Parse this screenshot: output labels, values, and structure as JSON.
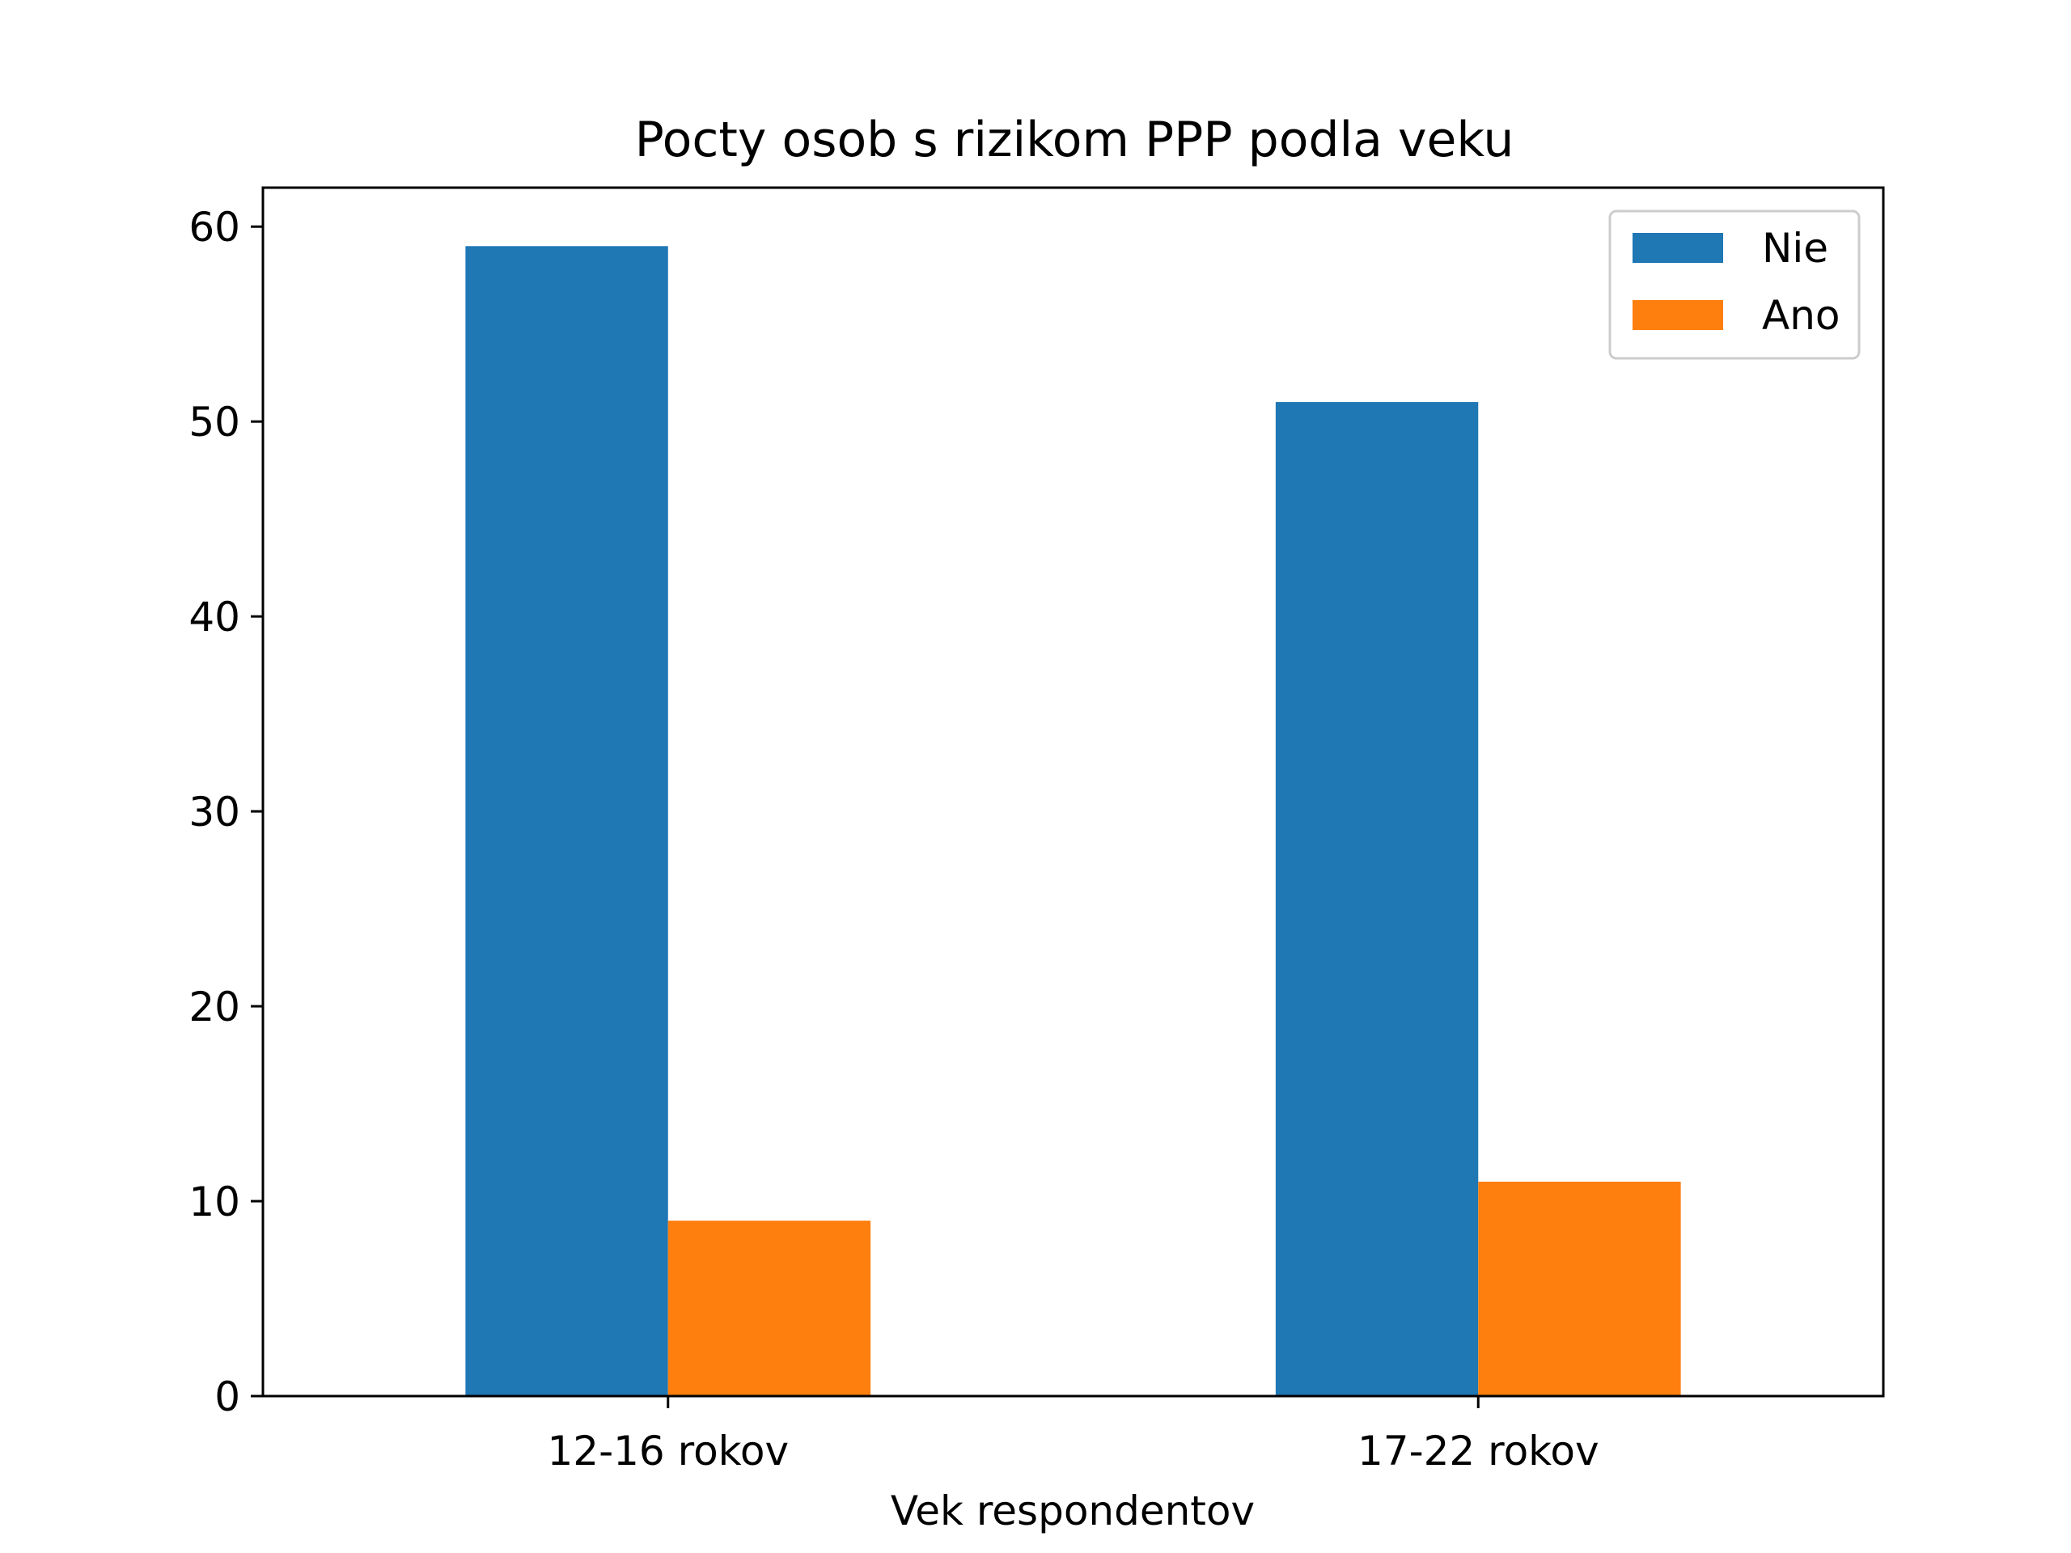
{
  "chart_data": {
    "type": "bar",
    "title": "Pocty osob s rizikom PPP podla veku",
    "xlabel": "Vek respondentov",
    "ylabel": "",
    "categories": [
      "12-16 rokov",
      "17-22 rokov"
    ],
    "series": [
      {
        "name": "Nie",
        "values": [
          59,
          51
        ],
        "color": "#1f77b4"
      },
      {
        "name": "Ano",
        "values": [
          9,
          11
        ],
        "color": "#ff7f0e"
      }
    ],
    "ylim": [
      0,
      62
    ],
    "yticks": [
      0,
      10,
      20,
      30,
      40,
      50,
      60
    ],
    "ytick_labels": [
      "0",
      "10",
      "20",
      "30",
      "40",
      "50",
      "60"
    ],
    "grid": false,
    "legend_position": "top-right"
  }
}
